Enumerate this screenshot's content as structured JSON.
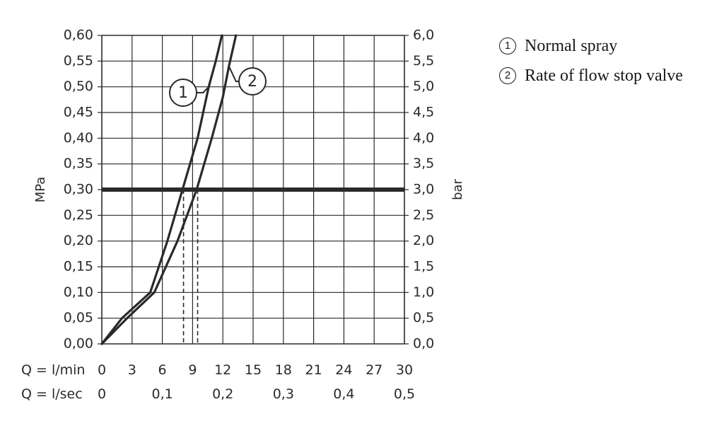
{
  "chart_data": {
    "type": "line",
    "x_unit": "l/min",
    "ylim": [
      0,
      0.6
    ],
    "xlim": [
      0,
      30
    ],
    "y_ticks": [
      "0,60",
      "0,55",
      "0,50",
      "0,45",
      "0,40",
      "0,35",
      "0,30",
      "0,25",
      "0,20",
      "0,15",
      "0,10",
      "0,05",
      "0,00"
    ],
    "y_ticks_values": [
      0.6,
      0.55,
      0.5,
      0.45,
      0.4,
      0.35,
      0.3,
      0.25,
      0.2,
      0.15,
      0.1,
      0.05,
      0.0
    ],
    "y2_ticks": [
      "6,0",
      "5,5",
      "5,0",
      "4,5",
      "4,0",
      "3,5",
      "3,0",
      "2,5",
      "2,0",
      "1,5",
      "1,0",
      "0,5",
      "0,0"
    ],
    "x_ticks": [
      "0",
      "3",
      "6",
      "9",
      "12",
      "15",
      "18",
      "21",
      "24",
      "27",
      "30"
    ],
    "x_ticks_values": [
      0,
      3,
      6,
      9,
      12,
      15,
      18,
      21,
      24,
      27,
      30
    ],
    "x2_ticks": [
      "0",
      "0,1",
      "0,2",
      "0,3",
      "0,4",
      "0,5"
    ],
    "x2_ticks_values": [
      0,
      6,
      12,
      18,
      24,
      30
    ],
    "ylabel": "MPa",
    "y2label": "bar",
    "x_row_label": "Q = l/min",
    "x2_row_label": "Q = l/sec",
    "grid": true,
    "reference_line": {
      "y": 0.3
    },
    "series": [
      {
        "name": "Normal spray",
        "marker": "1",
        "x": [
          0,
          2,
          4.8,
          6.5,
          8,
          9.5,
          10.6,
          11.3,
          11.9
        ],
        "y": [
          0,
          0.05,
          0.1,
          0.2,
          0.3,
          0.4,
          0.5,
          0.55,
          0.6
        ],
        "drop_x": 8.1
      },
      {
        "name": "Rate of flow stop valve",
        "marker": "2",
        "x": [
          0,
          2.5,
          5.2,
          7.5,
          9.4,
          10.9,
          12.0,
          12.6,
          13.3
        ],
        "y": [
          0,
          0.05,
          0.1,
          0.2,
          0.3,
          0.4,
          0.48,
          0.54,
          0.6
        ],
        "drop_x": 9.5
      }
    ],
    "legend": {
      "position": "top-right",
      "items": [
        {
          "marker": "①",
          "label": "Normal spray"
        },
        {
          "marker": "②",
          "label": "Rate of flow stop valve"
        }
      ]
    }
  }
}
